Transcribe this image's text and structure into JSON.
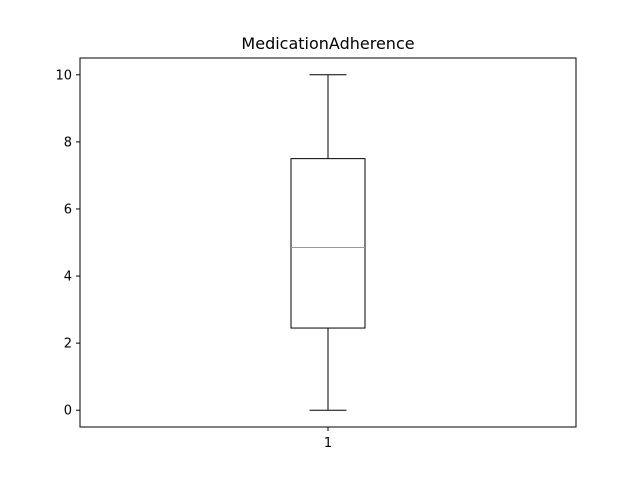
{
  "chart_data": {
    "type": "box",
    "title": "MedicationAdherence",
    "xlabel": "",
    "ylabel": "",
    "categories": [
      "1"
    ],
    "ylim": [
      -0.5,
      10.5
    ],
    "yticks": [
      0,
      2,
      4,
      6,
      8,
      10
    ],
    "grid": false,
    "boxes": [
      {
        "category": "1",
        "whisker_low": 0,
        "q1": 2.45,
        "median": 4.85,
        "q3": 7.5,
        "whisker_high": 10
      }
    ],
    "colors": {
      "box": "#000000",
      "median": "#ff7f0e",
      "axes": "#000000"
    }
  }
}
